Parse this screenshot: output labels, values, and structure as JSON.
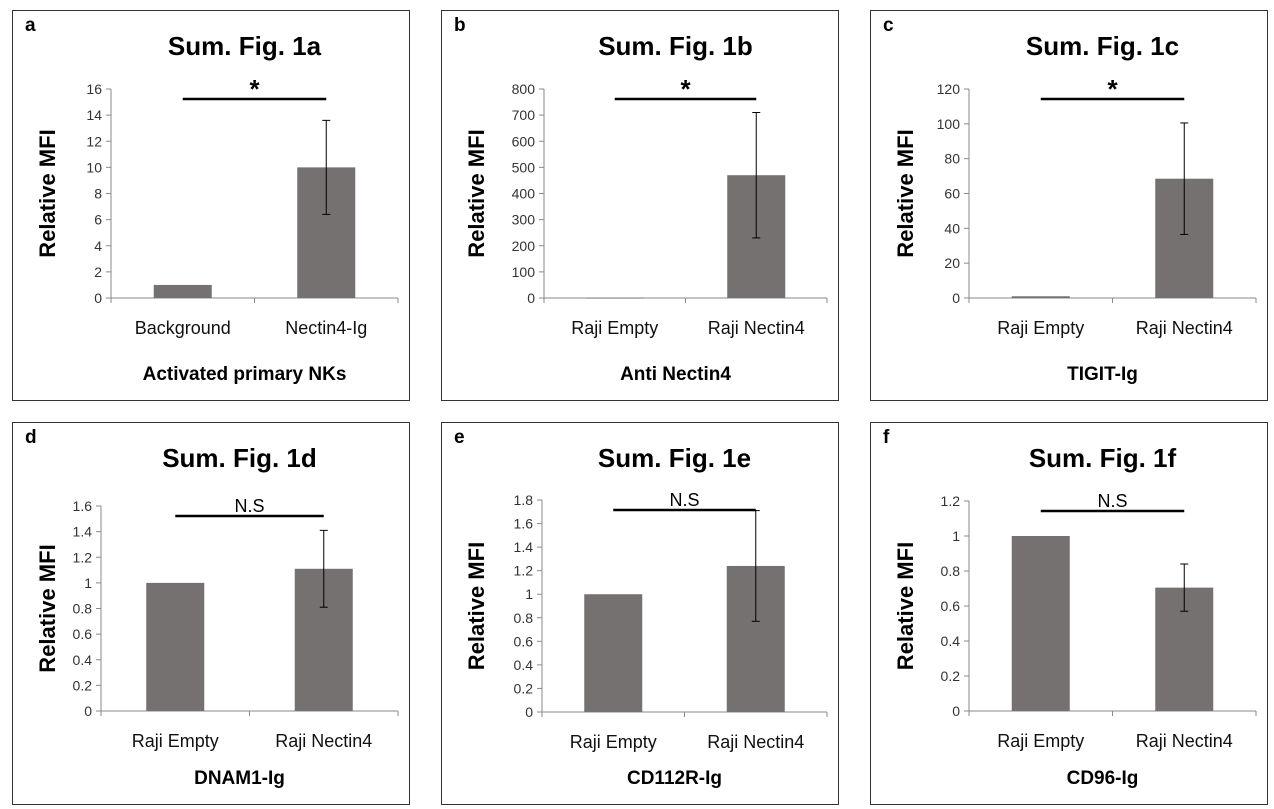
{
  "chart_data": [
    {
      "type": "bar",
      "panel": "a",
      "title": "Sum. Fig. 1a",
      "ylabel": "Relative MFI",
      "xlabel": "Activated primary NKs",
      "categories": [
        "Background",
        "Nectin4-Ig"
      ],
      "values": [
        1,
        10
      ],
      "errors": [
        0,
        3.6
      ],
      "ylim": [
        0,
        16
      ],
      "yticks": [
        0,
        2,
        4,
        6,
        8,
        10,
        12,
        14,
        16
      ],
      "significance": "*",
      "bar_color": "#767171"
    },
    {
      "type": "bar",
      "panel": "b",
      "title": "Sum. Fig. 1b",
      "ylabel": "Relative MFI",
      "xlabel": "Anti Nectin4",
      "categories": [
        "Raji Empty",
        "Raji Nectin4"
      ],
      "values": [
        1,
        470
      ],
      "errors": [
        0,
        240
      ],
      "ylim": [
        0,
        800
      ],
      "yticks": [
        0,
        100,
        200,
        300,
        400,
        500,
        600,
        700,
        800
      ],
      "significance": "*",
      "bar_color": "#767171"
    },
    {
      "type": "bar",
      "panel": "c",
      "title": "Sum. Fig. 1c",
      "ylabel": "Relative MFI",
      "xlabel": "TIGIT-Ig",
      "categories": [
        "Raji Empty",
        "Raji Nectin4"
      ],
      "values": [
        1,
        68.5
      ],
      "errors": [
        0,
        32
      ],
      "ylim": [
        0,
        120
      ],
      "yticks": [
        0,
        20,
        40,
        60,
        80,
        100,
        120
      ],
      "significance": "*",
      "bar_color": "#767171"
    },
    {
      "type": "bar",
      "panel": "d",
      "title": "Sum. Fig. 1d",
      "ylabel": "Relative MFI",
      "xlabel": "DNAM1-Ig",
      "categories": [
        "Raji Empty",
        "Raji Nectin4"
      ],
      "values": [
        1,
        1.11
      ],
      "errors": [
        0,
        0.3
      ],
      "ylim": [
        0,
        1.6
      ],
      "yticks": [
        "0",
        "0.2",
        "0.4",
        "0.6",
        "0.8",
        "1",
        "1.2",
        "1.4",
        "1.6"
      ],
      "significance": "N.S",
      "bar_color": "#767171"
    },
    {
      "type": "bar",
      "panel": "e",
      "title": "Sum. Fig. 1e",
      "ylabel": "Relative MFI",
      "xlabel": "CD112R-Ig",
      "categories": [
        "Raji Empty",
        "Raji Nectin4"
      ],
      "values": [
        1,
        1.24
      ],
      "errors": [
        0,
        0.47
      ],
      "ylim": [
        0,
        1.8
      ],
      "yticks": [
        "0",
        "0.2",
        "0.4",
        "0.6",
        "0.8",
        "1",
        "1.2",
        "1.4",
        "1.6",
        "1.8"
      ],
      "significance": "N.S",
      "bar_color": "#767171"
    },
    {
      "type": "bar",
      "panel": "f",
      "title": "Sum. Fig. 1f",
      "ylabel": "Relative MFI",
      "xlabel": "CD96-Ig",
      "categories": [
        "Raji Empty",
        "Raji Nectin4"
      ],
      "values": [
        1,
        0.705
      ],
      "errors": [
        0,
        0.135
      ],
      "ylim": [
        0,
        1.2
      ],
      "yticks": [
        "0",
        "0.2",
        "0.4",
        "0.6",
        "0.8",
        "1",
        "1.2"
      ],
      "significance": "N.S",
      "bar_color": "#767171"
    }
  ]
}
